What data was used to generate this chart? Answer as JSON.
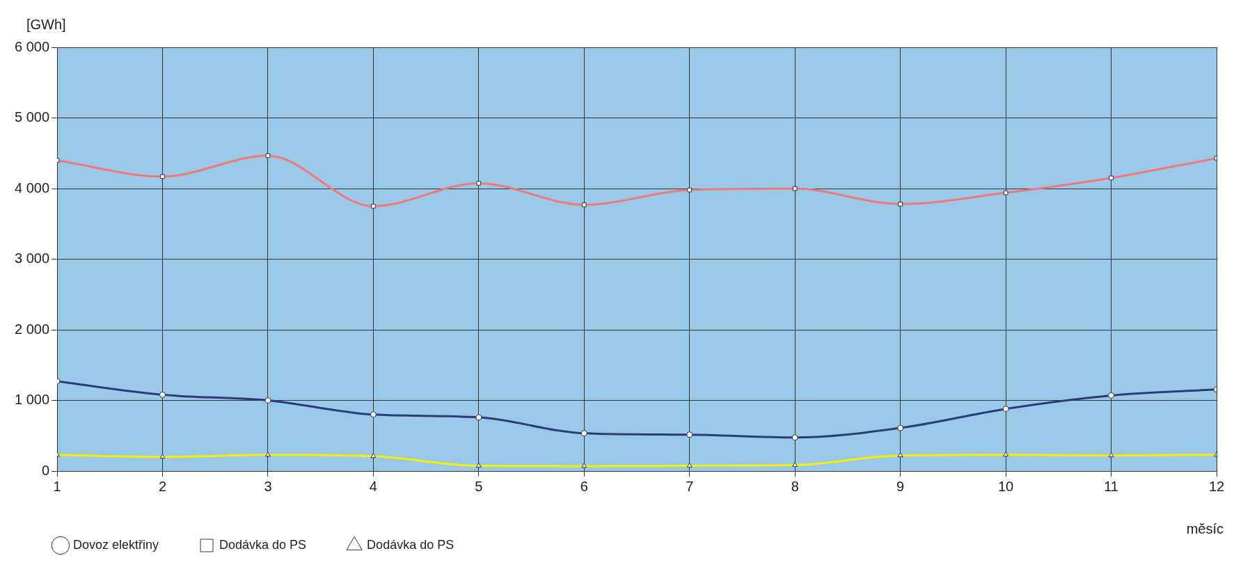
{
  "chart_data": {
    "type": "line",
    "xlabel": "měsíc",
    "ylabel": "[GWh]",
    "x": [
      1,
      2,
      3,
      4,
      5,
      6,
      7,
      8,
      9,
      10,
      11,
      12
    ],
    "xlim": [
      1,
      12
    ],
    "xticks": [
      1,
      2,
      3,
      4,
      5,
      6,
      7,
      8,
      9,
      10,
      11,
      12
    ],
    "ylim": [
      0,
      6000
    ],
    "yticks": [
      {
        "value": 0,
        "label": "0"
      },
      {
        "value": 1000,
        "label": "1 000"
      },
      {
        "value": 2000,
        "label": "2 000"
      },
      {
        "value": 3000,
        "label": "3 000"
      },
      {
        "value": 4000,
        "label": "4 000"
      },
      {
        "value": 5000,
        "label": "5 000"
      },
      {
        "value": 6000,
        "label": "6 000"
      }
    ],
    "grid": true,
    "legend": "bottom",
    "series": [
      {
        "name": "Dovoz elektřiny",
        "color": "#2e3a78",
        "marker": "circle",
        "values": [
          1270,
          1080,
          1000,
          800,
          760,
          535,
          515,
          475,
          610,
          880,
          1070,
          1155
        ]
      },
      {
        "name": "Dodávka do PS",
        "color": "#f07878",
        "marker": "square",
        "values": [
          4400,
          4170,
          4465,
          3750,
          4075,
          3770,
          3980,
          4000,
          3780,
          3940,
          4150,
          4430
        ]
      },
      {
        "name": "Dodávka do PS",
        "color": "#f5f000",
        "marker": "triangle",
        "values": [
          230,
          200,
          230,
          210,
          75,
          70,
          75,
          85,
          220,
          230,
          220,
          230
        ]
      }
    ]
  }
}
